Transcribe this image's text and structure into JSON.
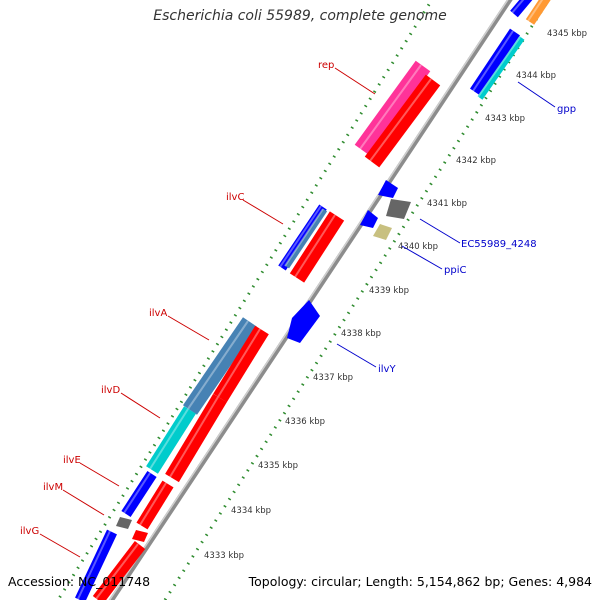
{
  "title": "Escherichia coli 55989, complete genome",
  "accession": "Accession: NC_011748",
  "summary": "Topology: circular; Length: 5,154,862 bp; Genes: 4,984",
  "scale_labels": [
    "4333 kbp",
    "4334 kbp",
    "4335 kbp",
    "4336 kbp",
    "4337 kbp",
    "4338 kbp",
    "4339 kbp",
    "4340 kbp",
    "4341 kbp",
    "4342 kbp",
    "4343 kbp",
    "4344 kbp",
    "4345 kbp"
  ],
  "forward_labels": [
    "rep",
    "ilvC",
    "ilvA",
    "ilvD",
    "ilvE",
    "ilvM",
    "ilvG"
  ],
  "reverse_labels": [
    "gpp",
    "EC55989_4248",
    "ppiC",
    "ilvY"
  ],
  "colors": {
    "backbone": "#8c8c8c",
    "tick": "#2e8b2e",
    "cds": "#ff0000",
    "gene": "#0000ff",
    "steelblue": "#4682b4",
    "cyan": "#00cccc",
    "magenta": "#ff3399",
    "gray": "#666666",
    "khaki": "#c8c080",
    "forward_label": "#cc0000",
    "reverse_label": "#0000cc"
  }
}
